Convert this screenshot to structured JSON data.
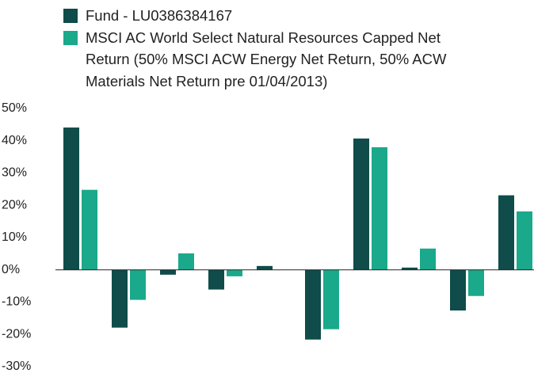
{
  "chart_data": {
    "type": "bar",
    "categories": [
      null,
      null,
      null,
      null,
      null,
      null,
      null,
      null,
      null,
      null
    ],
    "series": [
      {
        "name": "Fund - LU0386384167",
        "color": "#0f4c4a",
        "values": [
          44.1,
          -17.9,
          -1.5,
          -6.1,
          1.2,
          -21.6,
          40.7,
          0.7,
          -12.6,
          23.1
        ]
      },
      {
        "name": "MSCI AC World Select Natural Resources Capped Net Return (50% MSCI ACW Energy Net Return, 50% ACW Materials Net Return pre 01/04/2013)",
        "color": "#1aa98a",
        "values": [
          24.8,
          -9.3,
          5.1,
          -2.0,
          null,
          -18.4,
          38.0,
          6.6,
          -8.1,
          18.1
        ]
      }
    ],
    "ylim": [
      -30,
      50
    ],
    "yticks": [
      {
        "value": 50,
        "label": "50%"
      },
      {
        "value": 40,
        "label": "40%"
      },
      {
        "value": 30,
        "label": "30%"
      },
      {
        "value": 20,
        "label": "20%"
      },
      {
        "value": 10,
        "label": "10%"
      },
      {
        "value": 0,
        "label": "0%"
      },
      {
        "value": -10,
        "label": "-10%"
      },
      {
        "value": -20,
        "label": "-20%"
      },
      {
        "value": -30,
        "label": "-30%"
      }
    ],
    "grid": false
  }
}
